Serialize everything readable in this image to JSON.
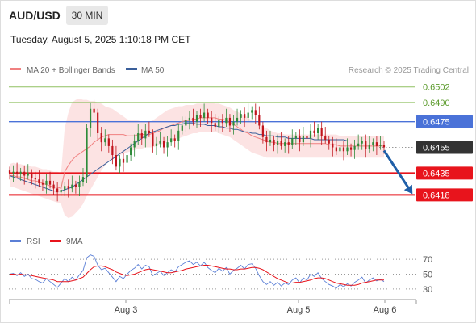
{
  "header": {
    "symbol": "AUD/USD",
    "timeframe": "30 MIN",
    "datetime": "Tuesday, August 5, 2025 1:10:18 PM CET"
  },
  "colors": {
    "bollinger_fill": "#fcdede",
    "ma20": "#f08080",
    "ma50": "#3a5f9a",
    "resistance_blue": "#4a72d8",
    "support_red": "#e8141c",
    "target_green": "#8fc060",
    "target_green_text": "#5a9a2a",
    "current_price_box": "#333333",
    "candle_up": "#2e8b3a",
    "candle_down": "#c0141c",
    "arrow": "#1f5fa8",
    "rsi_line": "#5b7fd6",
    "rsi_ma": "#e8141c",
    "grid_dots": "#999999"
  },
  "chart_data": [
    {
      "type": "candlestick",
      "title": "AUD/USD 30 MIN",
      "legend": [
        {
          "name": "MA 20 + Bollinger Bands",
          "color": "#f08080"
        },
        {
          "name": "MA 50",
          "color": "#3a5f9a"
        }
      ],
      "credit": "Research © 2025 Trading Central",
      "x_ticks": [
        "Aug 3",
        "Aug 5",
        "Aug 6"
      ],
      "ylim": [
        0.64,
        0.651
      ],
      "levels": [
        {
          "label": "0.6502",
          "value": 0.6502,
          "kind": "target"
        },
        {
          "label": "0.6490",
          "value": 0.649,
          "kind": "target"
        },
        {
          "label": "0.6475",
          "value": 0.6475,
          "kind": "resistance"
        },
        {
          "label": "0.6455",
          "value": 0.6455,
          "kind": "current"
        },
        {
          "label": "0.6435",
          "value": 0.6435,
          "kind": "support"
        },
        {
          "label": "0.6418",
          "value": 0.6418,
          "kind": "support"
        }
      ],
      "projection": {
        "from": 0.6455,
        "to": 0.6418
      },
      "closes": [
        0.6435,
        0.6436,
        0.6434,
        0.6436,
        0.6433,
        0.6435,
        0.6431,
        0.643,
        0.6427,
        0.6426,
        0.6429,
        0.6426,
        0.6423,
        0.642,
        0.6422,
        0.6425,
        0.6423,
        0.6426,
        0.6424,
        0.6428,
        0.6432,
        0.647,
        0.6485,
        0.6482,
        0.6466,
        0.6459,
        0.6462,
        0.6456,
        0.6449,
        0.644,
        0.6446,
        0.6443,
        0.6449,
        0.6455,
        0.646,
        0.6466,
        0.6462,
        0.6468,
        0.6466,
        0.6456,
        0.6458,
        0.646,
        0.6455,
        0.6459,
        0.6462,
        0.646,
        0.6468,
        0.6472,
        0.6476,
        0.6478,
        0.6475,
        0.648,
        0.6478,
        0.6482,
        0.6478,
        0.6474,
        0.6471,
        0.6476,
        0.6474,
        0.6478,
        0.6472,
        0.6475,
        0.6478,
        0.6481,
        0.6478,
        0.6482,
        0.6484,
        0.648,
        0.6472,
        0.6463,
        0.6459,
        0.6461,
        0.6457,
        0.646,
        0.6456,
        0.6459,
        0.6457,
        0.6462,
        0.6464,
        0.6459,
        0.6464,
        0.6462,
        0.6468,
        0.6466,
        0.647,
        0.6464,
        0.6461,
        0.6458,
        0.6455,
        0.6452,
        0.6455,
        0.6452,
        0.6455,
        0.6453,
        0.6456,
        0.6458,
        0.646,
        0.6454,
        0.6457,
        0.6459,
        0.6456,
        0.6457,
        0.6455
      ],
      "bollinger_upper": [
        0.6442,
        0.6443,
        0.6442,
        0.6442,
        0.6441,
        0.6441,
        0.644,
        0.644,
        0.6439,
        0.6438,
        0.6438,
        0.6437,
        0.6436,
        0.6436,
        0.6435,
        0.647,
        0.6482,
        0.649,
        0.6492,
        0.6493,
        0.6492,
        0.6492,
        0.6491,
        0.6491,
        0.649,
        0.6489,
        0.6487,
        0.6486,
        0.6485,
        0.6483,
        0.6481,
        0.6479,
        0.6477,
        0.6476,
        0.6476,
        0.6476,
        0.6475,
        0.6475,
        0.6475,
        0.6476,
        0.6478,
        0.648,
        0.6482,
        0.6484,
        0.6485,
        0.6486,
        0.6487,
        0.6487,
        0.6488,
        0.6488,
        0.6488,
        0.6489,
        0.6489,
        0.6489,
        0.649,
        0.649,
        0.6489,
        0.6489,
        0.6488,
        0.6487,
        0.6486,
        0.6484,
        0.6483,
        0.6481,
        0.648,
        0.6478,
        0.6476,
        0.6475,
        0.6473,
        0.6471,
        0.647,
        0.6468,
        0.6467,
        0.6466,
        0.6466,
        0.6465,
        0.6465,
        0.6465,
        0.6465,
        0.6465,
        0.6465,
        0.6465,
        0.6465,
        0.6465,
        0.6465,
        0.6465,
        0.6465,
        0.6465,
        0.6465,
        0.6465,
        0.6464,
        0.6464,
        0.6464,
        0.6464,
        0.6464,
        0.6464,
        0.6464,
        0.6464,
        0.6464,
        0.6464,
        0.6464,
        0.6464,
        0.6464
      ],
      "bollinger_lower": [
        0.6424,
        0.6424,
        0.6423,
        0.6422,
        0.6421,
        0.642,
        0.6419,
        0.6418,
        0.6417,
        0.6416,
        0.6415,
        0.6414,
        0.6413,
        0.6412,
        0.6411,
        0.6402,
        0.64,
        0.6401,
        0.6404,
        0.6407,
        0.6411,
        0.6417,
        0.6422,
        0.6427,
        0.6432,
        0.6437,
        0.6441,
        0.6444,
        0.6446,
        0.6448,
        0.6449,
        0.645,
        0.6451,
        0.6452,
        0.6453,
        0.6454,
        0.6454,
        0.6455,
        0.6455,
        0.6455,
        0.6456,
        0.6457,
        0.6458,
        0.6459,
        0.646,
        0.6461,
        0.6462,
        0.6463,
        0.6464,
        0.6465,
        0.6466,
        0.6466,
        0.6467,
        0.6467,
        0.6467,
        0.6467,
        0.6467,
        0.6466,
        0.6465,
        0.6464,
        0.6463,
        0.6461,
        0.6459,
        0.6457,
        0.6455,
        0.6453,
        0.6451,
        0.645,
        0.6449,
        0.6448,
        0.6447,
        0.6447,
        0.6447,
        0.6447,
        0.6447,
        0.6447,
        0.6447,
        0.6447,
        0.6447,
        0.6447,
        0.6447,
        0.6447,
        0.6447,
        0.6447,
        0.6447,
        0.6447,
        0.6447,
        0.6447,
        0.6447,
        0.6447,
        0.6447,
        0.6447,
        0.6447,
        0.6447,
        0.6447,
        0.6447,
        0.6447,
        0.6447,
        0.6447,
        0.6447,
        0.6447,
        0.6447,
        0.6447
      ],
      "ma20": [
        0.6433,
        0.6433,
        0.6432,
        0.6432,
        0.6431,
        0.643,
        0.6429,
        0.6429,
        0.6428,
        0.6427,
        0.6426,
        0.6425,
        0.6424,
        0.6424,
        0.6423,
        0.6436,
        0.6441,
        0.6445,
        0.6448,
        0.645,
        0.6452,
        0.6454,
        0.6456,
        0.6459,
        0.6461,
        0.6463,
        0.6464,
        0.6465,
        0.6465,
        0.6465,
        0.6465,
        0.6465,
        0.6464,
        0.6464,
        0.6464,
        0.6465,
        0.6465,
        0.6465,
        0.6465,
        0.6466,
        0.6467,
        0.6468,
        0.647,
        0.6471,
        0.6472,
        0.6473,
        0.6474,
        0.6475,
        0.6476,
        0.6476,
        0.6477,
        0.6477,
        0.6478,
        0.6478,
        0.6478,
        0.6478,
        0.6478,
        0.6477,
        0.6477,
        0.6476,
        0.6474,
        0.6473,
        0.6471,
        0.6469,
        0.6467,
        0.6466,
        0.6464,
        0.6463,
        0.6462,
        0.6461,
        0.646,
        0.6459,
        0.6459,
        0.6458,
        0.6458,
        0.6458,
        0.6458,
        0.6458,
        0.6458,
        0.6458,
        0.6458,
        0.6458,
        0.6458,
        0.6458,
        0.6458,
        0.6458,
        0.6458,
        0.6457,
        0.6457,
        0.6457,
        0.6456,
        0.6456,
        0.6456,
        0.6456,
        0.6456,
        0.6456,
        0.6456,
        0.6456,
        0.6456,
        0.6456,
        0.6456,
        0.6456,
        0.6456
      ],
      "ma50": [
        0.6433,
        0.6432,
        0.6431,
        0.643,
        0.6429,
        0.6428,
        0.6427,
        0.6426,
        0.6425,
        0.6424,
        0.6423,
        0.6422,
        0.6421,
        0.6421,
        0.6421,
        0.6422,
        0.6423,
        0.6424,
        0.6426,
        0.6428,
        0.643,
        0.6432,
        0.6434,
        0.6436,
        0.6438,
        0.644,
        0.6442,
        0.6444,
        0.6446,
        0.6448,
        0.645,
        0.6452,
        0.6454,
        0.6456,
        0.6458,
        0.646,
        0.6462,
        0.6464,
        0.6466,
        0.6467,
        0.6468,
        0.6469,
        0.647,
        0.6471,
        0.6472,
        0.6472,
        0.6473,
        0.6473,
        0.6474,
        0.6474,
        0.6474,
        0.6473,
        0.6473,
        0.6473,
        0.6472,
        0.6472,
        0.6472,
        0.6471,
        0.6471,
        0.647,
        0.647,
        0.6469,
        0.6469,
        0.6468,
        0.6467,
        0.6467,
        0.6466,
        0.6466,
        0.6465,
        0.6465,
        0.6464,
        0.6464,
        0.6464,
        0.6463,
        0.6463,
        0.6463,
        0.6462,
        0.6462,
        0.6462,
        0.6462,
        0.6462,
        0.6462,
        0.6462,
        0.6461,
        0.6461,
        0.6461,
        0.6461,
        0.6461,
        0.6461,
        0.6461,
        0.6461,
        0.6461,
        0.646,
        0.646,
        0.646,
        0.646,
        0.646,
        0.646,
        0.646,
        0.646,
        0.646,
        0.646,
        0.646
      ]
    },
    {
      "type": "line",
      "title": "",
      "legend": [
        {
          "name": "RSI",
          "color": "#5b7fd6"
        },
        {
          "name": "9MA",
          "color": "#e8141c"
        }
      ],
      "y_ticks": [
        70,
        50,
        30
      ],
      "ylim": [
        20,
        80
      ],
      "rsi": [
        50,
        51,
        48,
        52,
        47,
        50,
        44,
        43,
        40,
        38,
        44,
        40,
        36,
        32,
        38,
        44,
        40,
        46,
        42,
        49,
        55,
        72,
        76,
        74,
        62,
        56,
        58,
        52,
        46,
        40,
        47,
        44,
        50,
        55,
        58,
        63,
        57,
        62,
        60,
        48,
        51,
        54,
        48,
        52,
        56,
        53,
        60,
        63,
        66,
        68,
        63,
        66,
        61,
        66,
        59,
        55,
        52,
        58,
        54,
        59,
        50,
        55,
        58,
        62,
        57,
        63,
        64,
        58,
        48,
        40,
        36,
        40,
        35,
        39,
        34,
        38,
        36,
        42,
        45,
        38,
        45,
        42,
        50,
        47,
        52,
        44,
        40,
        36,
        34,
        31,
        36,
        33,
        37,
        34,
        39,
        42,
        46,
        38,
        42,
        45,
        41,
        43,
        40
      ],
      "rsi_ma": [
        50,
        50,
        49,
        50,
        49,
        49,
        48,
        47,
        46,
        45,
        44,
        43,
        42,
        40,
        40,
        40,
        40,
        41,
        42,
        44,
        46,
        51,
        56,
        60,
        61,
        61,
        60,
        58,
        56,
        53,
        51,
        49,
        48,
        49,
        50,
        52,
        54,
        56,
        57,
        56,
        55,
        54,
        53,
        52,
        52,
        53,
        54,
        55,
        57,
        58,
        59,
        60,
        61,
        62,
        62,
        61,
        60,
        59,
        58,
        57,
        57,
        56,
        56,
        57,
        57,
        58,
        59,
        59,
        58,
        56,
        53,
        50,
        47,
        44,
        42,
        40,
        38,
        38,
        39,
        39,
        40,
        41,
        42,
        44,
        45,
        45,
        44,
        42,
        40,
        38,
        37,
        36,
        35,
        35,
        35,
        36,
        38,
        39,
        40,
        41,
        42,
        42,
        42
      ]
    }
  ]
}
